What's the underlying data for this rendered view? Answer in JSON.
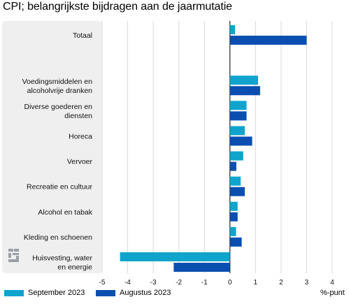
{
  "chart_data": {
    "type": "bar",
    "orientation": "horizontal",
    "title": "CPI; belangrijkste bijdragen aan de jaarmutatie",
    "unit": "%-punt",
    "xlim": [
      -5,
      4
    ],
    "xticks": [
      -5,
      -4,
      -3,
      -2,
      -1,
      0,
      1,
      2,
      3,
      4
    ],
    "grid": true,
    "legend_position": "bottom",
    "categories": [
      "Totaal",
      "",
      "Voedingsmiddelen en\nalcoholvrije dranken",
      "Diverse goederen en\ndiensten",
      "Horeca",
      "Vervoer",
      "Recreatie en cultuur",
      "Alcohol en tabak",
      "Kleding en schoenen",
      "Huisvesting, water\nen energie"
    ],
    "series": [
      {
        "name": "September 2023",
        "color": "#10a4cc",
        "values": [
          0.2,
          null,
          1.1,
          0.65,
          0.58,
          0.52,
          0.42,
          0.3,
          0.24,
          -4.3
        ]
      },
      {
        "name": "Augustus 2023",
        "color": "#0a4fb0",
        "values": [
          3.0,
          null,
          1.18,
          0.65,
          0.87,
          0.25,
          0.58,
          0.3,
          0.46,
          -2.2
        ]
      }
    ]
  },
  "legend": {
    "september": {
      "label": "September 2023",
      "color": "#10a4cc"
    },
    "augustus": {
      "label": "Augustus 2023",
      "color": "#0a4fb0"
    }
  },
  "logo_icon": "cbs-logo-icon"
}
